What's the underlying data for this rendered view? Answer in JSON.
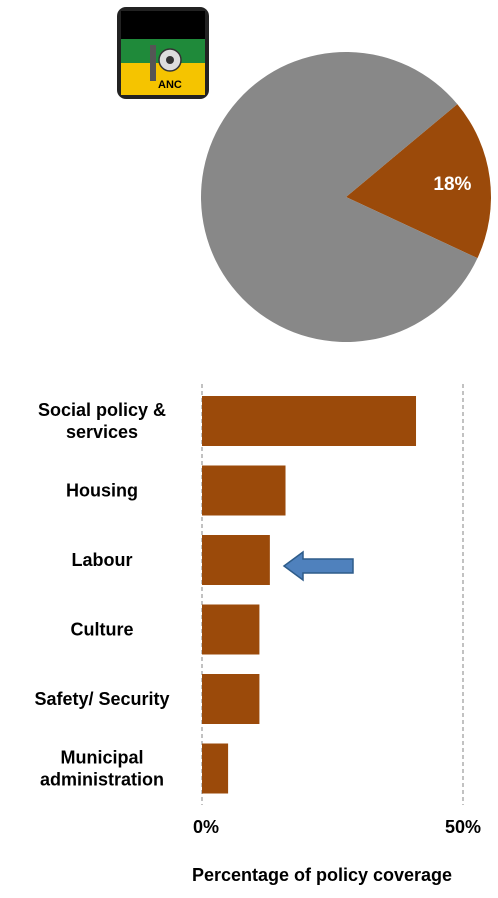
{
  "logo": {
    "text": "ANC",
    "name": "anc-logo"
  },
  "colors": {
    "bar": "#9B4A0A",
    "pie_highlight": "#9B4A0A",
    "pie_rest": "#888888",
    "arrow": "#4F81BD",
    "arrow_stroke": "#2E5C8A",
    "grid": "#999999"
  },
  "chart_data": [
    {
      "type": "pie",
      "slices": [
        {
          "label": "18%",
          "value": 18,
          "highlight": true
        },
        {
          "value": 82,
          "highlight": false
        }
      ]
    },
    {
      "type": "bar",
      "orientation": "horizontal",
      "categories": [
        [
          "Social policy &",
          "services"
        ],
        [
          "Housing"
        ],
        [
          "Labour"
        ],
        [
          "Culture"
        ],
        [
          "Safety/ Security"
        ],
        [
          "Municipal",
          "administration"
        ]
      ],
      "values": [
        41,
        16,
        13,
        11,
        11,
        5
      ],
      "xlim": [
        0,
        50
      ],
      "xticks": [
        "0%",
        "50%"
      ],
      "xlabel": "Percentage of policy coverage",
      "gridlines": "dashed-at-ticks",
      "highlight_category": "Labour"
    }
  ]
}
